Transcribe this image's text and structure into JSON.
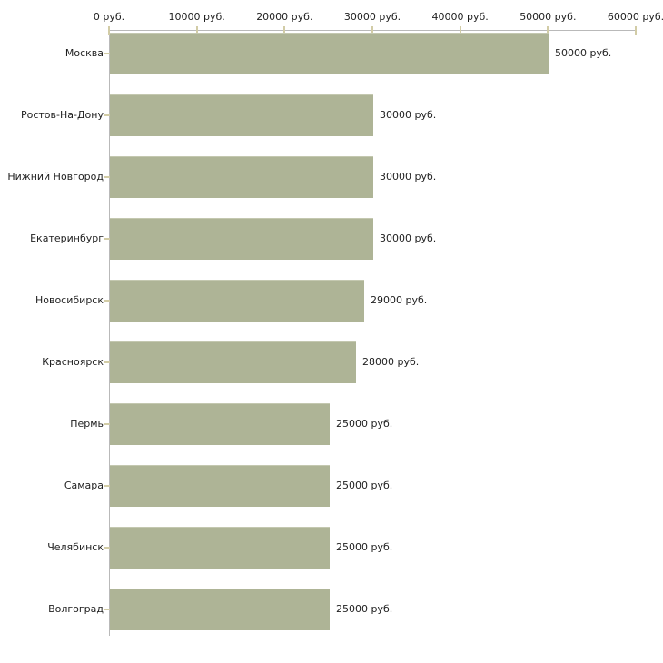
{
  "chart_data": {
    "type": "bar",
    "orientation": "horizontal",
    "title": "",
    "xlabel": "",
    "ylabel": "",
    "unit": "руб.",
    "categories": [
      "Москва",
      "Ростов-На-Дону",
      "Нижний Новгород",
      "Екатеринбург",
      "Новосибирск",
      "Красноярск",
      "Пермь",
      "Самара",
      "Челябинск",
      "Волгоград"
    ],
    "values": [
      50000,
      30000,
      30000,
      30000,
      29000,
      28000,
      25000,
      25000,
      25000,
      25000
    ],
    "value_labels": [
      "50000 руб.",
      "30000 руб.",
      "30000 руб.",
      "30000 руб.",
      "29000 руб.",
      "28000 руб.",
      "25000 руб.",
      "25000 руб.",
      "25000 руб.",
      "25000 руб."
    ],
    "xlim": [
      0,
      60000
    ],
    "x_ticks": [
      0,
      10000,
      20000,
      30000,
      40000,
      50000,
      60000
    ],
    "x_tick_labels": [
      "0 руб.",
      "10000 руб.",
      "20000 руб.",
      "30000 руб.",
      "40000 руб.",
      "50000 руб.",
      "60000 руб."
    ],
    "grid": false,
    "legend": null,
    "colors": {
      "bar_fill": "#aeb496",
      "bar_top_edge": "#c4c8b0",
      "axis_line": "#b9b9b9",
      "tick_mark": "#d2cca6",
      "text": "#1f1f1f",
      "background": "#ffffff"
    }
  }
}
